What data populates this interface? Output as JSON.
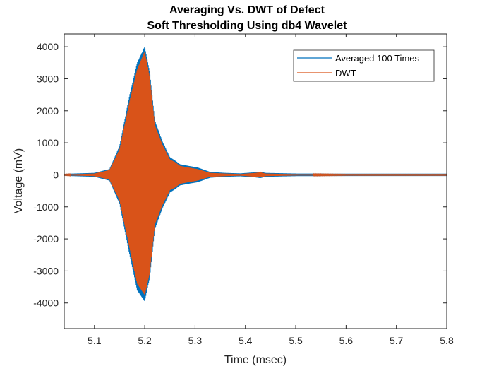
{
  "chart_data": {
    "type": "line",
    "title": "Averaging Vs. DWT of Defect",
    "subtitle": "Soft Thresholding Using db4 Wavelet",
    "xlabel": "Time (msec)",
    "ylabel": "Voltage (mV)",
    "xlim": [
      5.04,
      5.8
    ],
    "ylim": [
      -4800,
      4400
    ],
    "xticks": [
      5.1,
      5.2,
      5.3,
      5.4,
      5.5,
      5.6,
      5.7,
      5.8
    ],
    "yticks": [
      -4000,
      -3000,
      -2000,
      -1000,
      0,
      1000,
      2000,
      3000,
      4000
    ],
    "grid": false,
    "legend_location": "top-right",
    "envelope_t": [
      5.04,
      5.1,
      5.13,
      5.15,
      5.17,
      5.185,
      5.2,
      5.21,
      5.22,
      5.235,
      5.25,
      5.26,
      5.27,
      5.29,
      5.305,
      5.33,
      5.36,
      5.39,
      5.42,
      5.43,
      5.44,
      5.5,
      5.6,
      5.8
    ],
    "series": [
      {
        "name": "Averaged 100 Times",
        "color": "#0072BD",
        "envelope_pos": [
          30,
          60,
          180,
          900,
          2500,
          3500,
          4000,
          3200,
          1700,
          1050,
          550,
          450,
          330,
          270,
          230,
          90,
          60,
          45,
          80,
          100,
          60,
          40,
          35,
          35
        ],
        "envelope_neg": [
          -30,
          -60,
          -180,
          -900,
          -2500,
          -3600,
          -3950,
          -3200,
          -1700,
          -1050,
          -550,
          -450,
          -330,
          -270,
          -230,
          -90,
          -60,
          -45,
          -80,
          -100,
          -60,
          -40,
          -35,
          -35
        ]
      },
      {
        "name": "DWT",
        "color": "#D95319",
        "envelope_pos": [
          10,
          40,
          150,
          800,
          2300,
          3300,
          3850,
          3050,
          1550,
          950,
          480,
          400,
          280,
          220,
          180,
          60,
          40,
          25,
          60,
          80,
          40,
          20,
          10,
          10
        ],
        "envelope_neg": [
          -10,
          -40,
          -150,
          -800,
          -2300,
          -3400,
          -3750,
          -3050,
          -1550,
          -950,
          -480,
          -400,
          -280,
          -220,
          -180,
          -60,
          -40,
          -25,
          -60,
          -80,
          -40,
          -20,
          -10,
          -10
        ]
      }
    ]
  }
}
